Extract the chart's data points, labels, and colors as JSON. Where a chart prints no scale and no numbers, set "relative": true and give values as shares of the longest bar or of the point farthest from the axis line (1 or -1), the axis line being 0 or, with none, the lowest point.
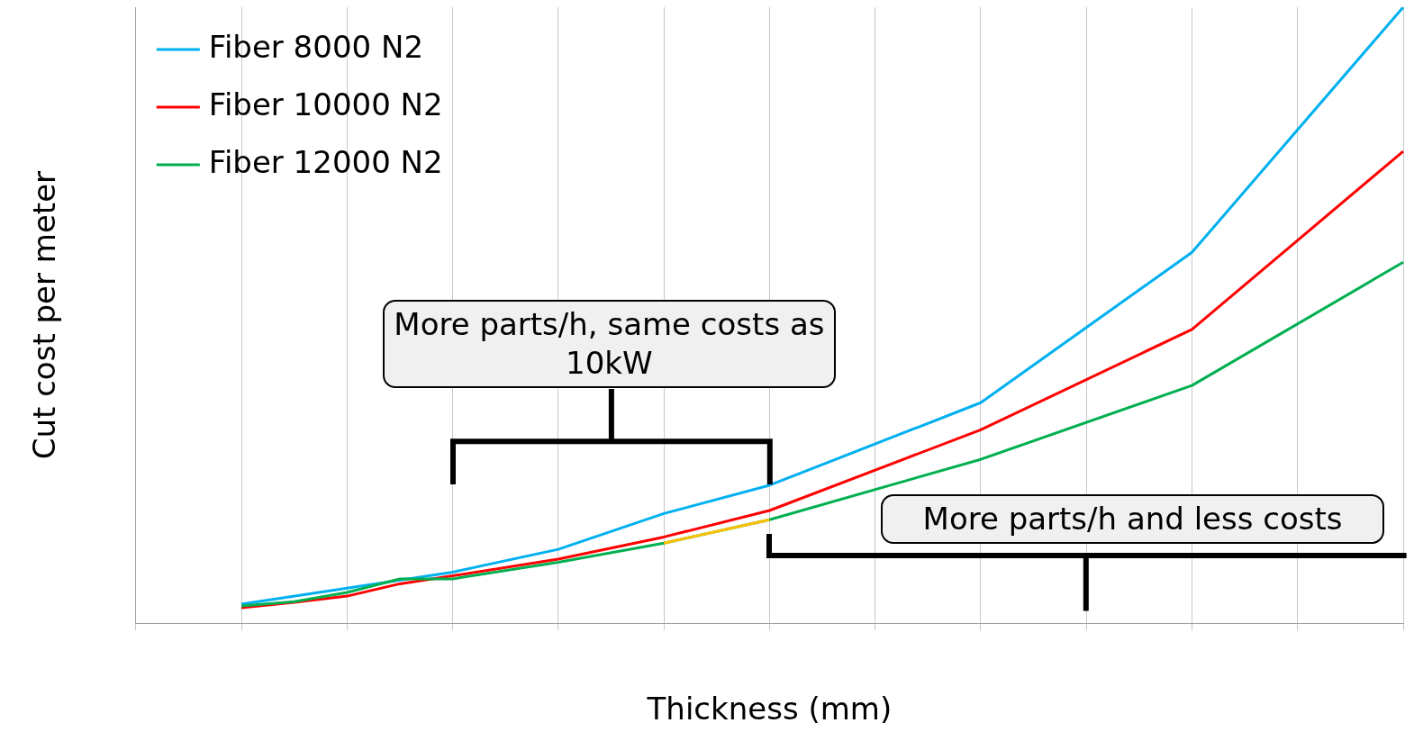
{
  "chart_data": {
    "type": "line",
    "relative": true,
    "xlabel": "Thickness (mm)",
    "ylabel": "Cut cost per meter",
    "categories": [
      null,
      null,
      null,
      null,
      null,
      null,
      null,
      null,
      null,
      null,
      null,
      null,
      null,
      null,
      null,
      null,
      null,
      null,
      null,
      null,
      null,
      null,
      null,
      null,
      null
    ],
    "grid": "x",
    "legend": "top left",
    "marker": "none",
    "line_style": "solid",
    "annotations": [
      "More parts/h, same costs as 10kW",
      "More parts/h and less costs"
    ],
    "series": [
      {
        "name": "Fiber 8000 N2",
        "color": "#00b0f0",
        "values": [
          null,
          null,
          0.031,
          null,
          0.057,
          null,
          0.083,
          null,
          0.12,
          null,
          0.178,
          null,
          0.224,
          null,
          null,
          null,
          0.358,
          null,
          null,
          null,
          0.602,
          null,
          null,
          null,
          1
        ]
      },
      {
        "name": "Fiber 10000 N2",
        "color": "#ff0000",
        "values": [
          null,
          null,
          0.025,
          0.034,
          0.044,
          0.064,
          0.077,
          null,
          0.104,
          null,
          0.14,
          null,
          0.183,
          null,
          null,
          null,
          0.314,
          null,
          null,
          null,
          0.477,
          null,
          null,
          null,
          0.766
        ]
      },
      {
        "name": "Fiber 12000 N2",
        "color": "#00b050",
        "values": [
          null,
          null,
          0.028,
          0.035,
          0.05,
          0.072,
          0.072,
          null,
          0.099,
          null,
          0.13,
          null,
          0.168,
          null,
          null,
          null,
          0.266,
          null,
          null,
          null,
          0.386,
          null,
          null,
          null,
          0.586
        ]
      },
      {
        "color": "#ffc000",
        "values": [
          null,
          null,
          null,
          null,
          null,
          null,
          null,
          null,
          null,
          null,
          0.13,
          null,
          0.168,
          null,
          null,
          null,
          null,
          null,
          null,
          null,
          null,
          null,
          null,
          null,
          null
        ]
      }
    ]
  }
}
